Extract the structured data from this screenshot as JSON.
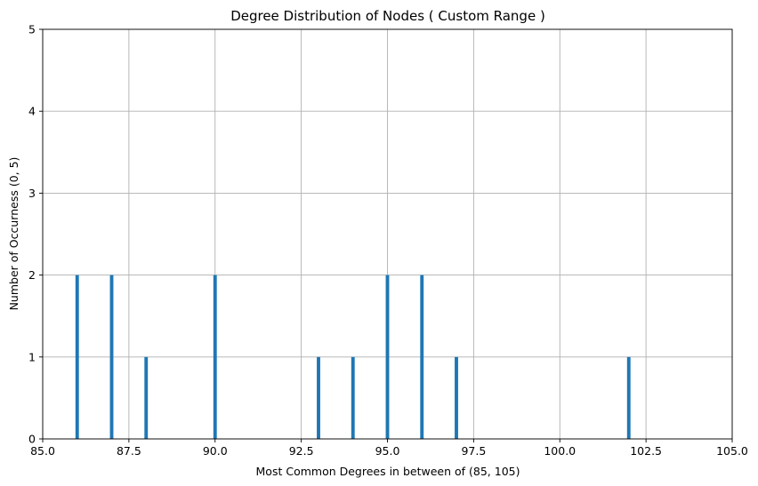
{
  "chart_data": {
    "type": "bar",
    "title": "Degree Distribution of Nodes ( Custom Range )",
    "xlabel": "Most Common Degrees in between of (85, 105)",
    "ylabel": "Number of Occurness (0, 5)",
    "xlim": [
      85.0,
      105.0
    ],
    "ylim": [
      0,
      5
    ],
    "x_ticks": [
      "85.0",
      "87.5",
      "90.0",
      "92.5",
      "95.0",
      "97.5",
      "100.0",
      "102.5",
      "105.0"
    ],
    "y_ticks": [
      "0",
      "1",
      "2",
      "3",
      "4",
      "5"
    ],
    "grid": true,
    "bar_color": "#1f77b4",
    "bar_width": 0.1,
    "x": [
      86,
      87,
      88,
      90,
      93,
      94,
      95,
      96,
      97,
      102
    ],
    "values": [
      2,
      2,
      1,
      2,
      1,
      1,
      2,
      2,
      1,
      1
    ]
  }
}
